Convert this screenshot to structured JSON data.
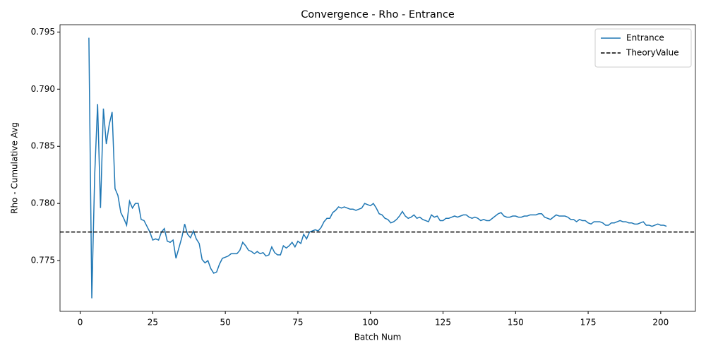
{
  "chart_data": {
    "type": "line",
    "title": "Convergence - Rho - Entrance",
    "x_label": "Batch Num",
    "y_label": "Rho - Cumulative Avg",
    "x": [
      3,
      4,
      5,
      6,
      7,
      8,
      9,
      10,
      11,
      12,
      13,
      14,
      15,
      16,
      17,
      18,
      19,
      20,
      21,
      22,
      23,
      24,
      25,
      26,
      27,
      28,
      29,
      30,
      31,
      32,
      33,
      34,
      35,
      36,
      37,
      38,
      39,
      40,
      41,
      42,
      43,
      44,
      45,
      46,
      47,
      48,
      49,
      50,
      51,
      52,
      53,
      54,
      55,
      56,
      57,
      58,
      59,
      60,
      61,
      62,
      63,
      64,
      65,
      66,
      67,
      68,
      69,
      70,
      71,
      72,
      73,
      74,
      75,
      76,
      77,
      78,
      79,
      80,
      81,
      82,
      83,
      84,
      85,
      86,
      87,
      88,
      89,
      90,
      91,
      92,
      93,
      94,
      95,
      96,
      97,
      98,
      99,
      100,
      101,
      102,
      103,
      104,
      105,
      106,
      107,
      108,
      109,
      110,
      111,
      112,
      113,
      114,
      115,
      116,
      117,
      118,
      119,
      120,
      121,
      122,
      123,
      124,
      125,
      126,
      127,
      128,
      129,
      130,
      131,
      132,
      133,
      134,
      135,
      136,
      137,
      138,
      139,
      140,
      141,
      142,
      143,
      144,
      145,
      146,
      147,
      148,
      149,
      150,
      151,
      152,
      153,
      154,
      155,
      156,
      157,
      158,
      159,
      160,
      161,
      162,
      163,
      164,
      165,
      166,
      167,
      168,
      169,
      170,
      171,
      172,
      173,
      174,
      175,
      176,
      177,
      178,
      179,
      180,
      181,
      182,
      183,
      184,
      185,
      186,
      187,
      188,
      189,
      190,
      191,
      192,
      193,
      194,
      195,
      196,
      197,
      198,
      199,
      200,
      201,
      202
    ],
    "series": [
      {
        "name": "Entrance",
        "color": "#1f77b4",
        "values": [
          0.7945,
          0.7717,
          0.7825,
          0.7887,
          0.7796,
          0.7883,
          0.7852,
          0.7869,
          0.788,
          0.7813,
          0.7807,
          0.7792,
          0.7787,
          0.7781,
          0.7802,
          0.7796,
          0.78,
          0.78,
          0.7786,
          0.7785,
          0.778,
          0.7775,
          0.7768,
          0.7769,
          0.7768,
          0.7775,
          0.7778,
          0.7767,
          0.7766,
          0.7768,
          0.7752,
          0.7761,
          0.777,
          0.7782,
          0.7773,
          0.777,
          0.7776,
          0.7769,
          0.7765,
          0.7751,
          0.7748,
          0.775,
          0.7743,
          0.7739,
          0.774,
          0.7747,
          0.7752,
          0.7753,
          0.7754,
          0.7756,
          0.7756,
          0.7756,
          0.7759,
          0.7766,
          0.7763,
          0.7759,
          0.7758,
          0.7756,
          0.7758,
          0.7756,
          0.7757,
          0.7754,
          0.7755,
          0.7762,
          0.7757,
          0.7755,
          0.7755,
          0.7763,
          0.7761,
          0.7763,
          0.7766,
          0.7762,
          0.7767,
          0.7765,
          0.7773,
          0.7769,
          0.7775,
          0.7776,
          0.7777,
          0.7776,
          0.7779,
          0.7784,
          0.7787,
          0.7787,
          0.7792,
          0.7794,
          0.7797,
          0.7796,
          0.7797,
          0.7796,
          0.7795,
          0.7795,
          0.7794,
          0.7795,
          0.7796,
          0.78,
          0.7799,
          0.7798,
          0.78,
          0.7796,
          0.7791,
          0.779,
          0.7787,
          0.7786,
          0.7783,
          0.7784,
          0.7786,
          0.7789,
          0.7793,
          0.7789,
          0.7787,
          0.7788,
          0.779,
          0.7787,
          0.7788,
          0.7786,
          0.7785,
          0.7784,
          0.779,
          0.7788,
          0.7789,
          0.7785,
          0.7785,
          0.7787,
          0.7787,
          0.7788,
          0.7789,
          0.7788,
          0.7789,
          0.779,
          0.779,
          0.7788,
          0.7787,
          0.7788,
          0.7787,
          0.7785,
          0.7786,
          0.7785,
          0.7785,
          0.7787,
          0.7789,
          0.7791,
          0.7792,
          0.7789,
          0.7788,
          0.7788,
          0.7789,
          0.7789,
          0.7788,
          0.7788,
          0.7789,
          0.7789,
          0.779,
          0.779,
          0.779,
          0.7791,
          0.7791,
          0.7788,
          0.7787,
          0.7786,
          0.7788,
          0.779,
          0.7789,
          0.7789,
          0.7789,
          0.7788,
          0.7786,
          0.7786,
          0.7784,
          0.7786,
          0.7785,
          0.7785,
          0.7783,
          0.7782,
          0.7784,
          0.7784,
          0.7784,
          0.7783,
          0.7781,
          0.7781,
          0.7783,
          0.7783,
          0.7784,
          0.7785,
          0.7784,
          0.7784,
          0.7783,
          0.7783,
          0.7782,
          0.7782,
          0.7783,
          0.7784,
          0.7781,
          0.7781,
          0.778,
          0.7781,
          0.7782,
          0.7781,
          0.7781,
          0.778
        ]
      }
    ],
    "reference_lines": [
      {
        "name": "TheoryValue",
        "value": 0.7775,
        "color": "#000000",
        "dashed": true
      }
    ],
    "xlim": [
      -6.95,
      211.95
    ],
    "xticks": [
      0,
      25,
      50,
      75,
      100,
      125,
      150,
      175,
      200
    ],
    "ylim": [
      0.77056,
      0.79564
    ],
    "yticks": [
      0.775,
      {
        "value": 0.78,
        "label": "0.780"
      },
      0.785,
      {
        "value": 0.79,
        "label": "0.790"
      },
      0.795
    ],
    "legend": "upper right",
    "grid": false
  }
}
